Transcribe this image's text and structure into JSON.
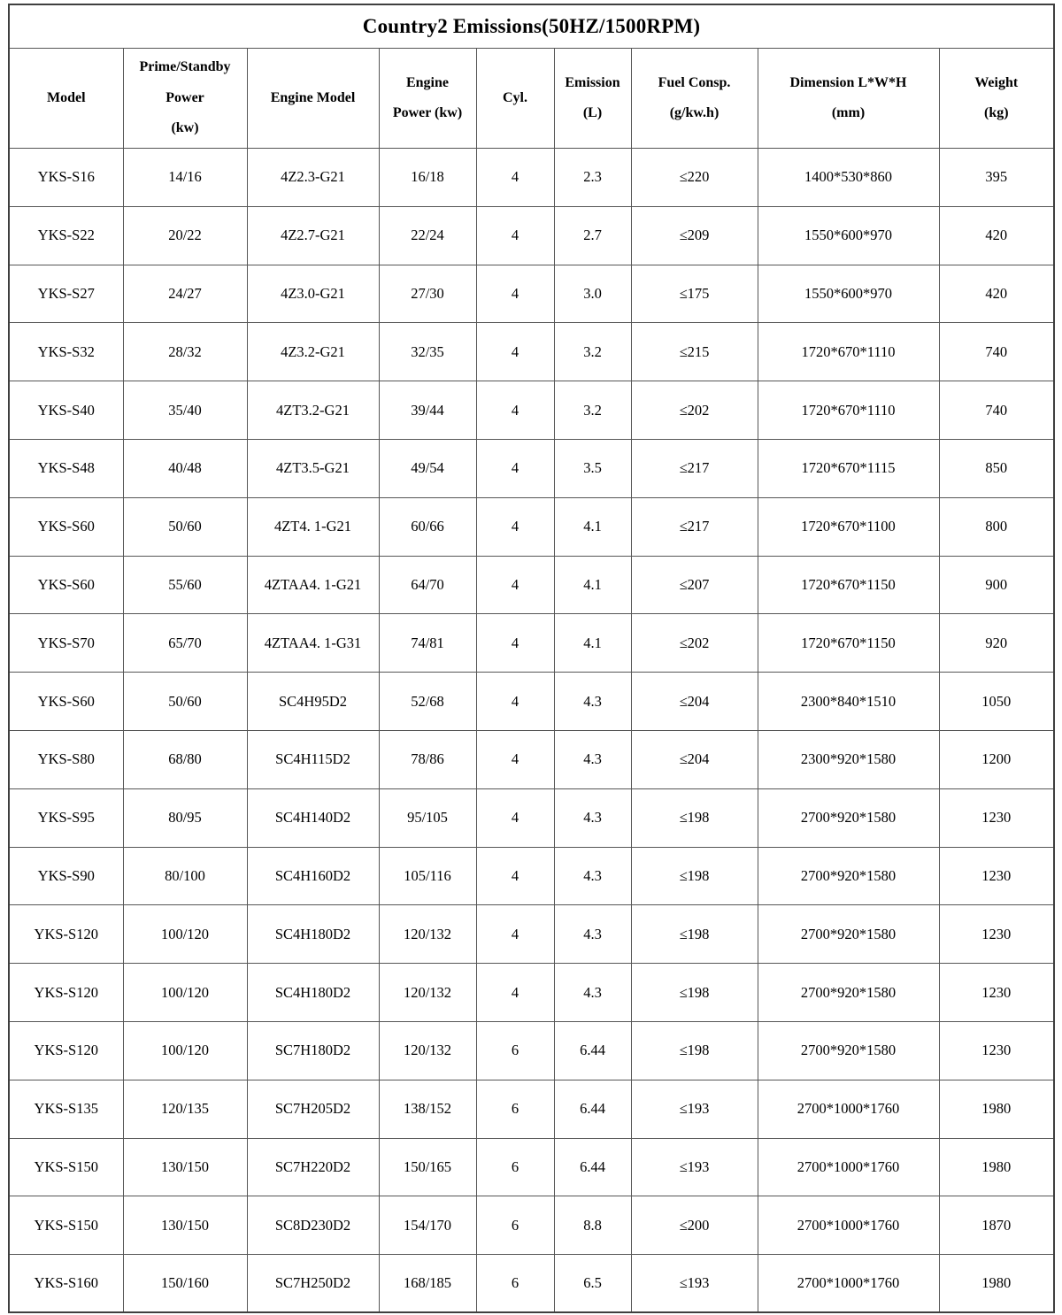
{
  "colors": {
    "background": "#ffffff",
    "text": "#000000",
    "border": "#565656"
  },
  "table": {
    "title": "Country2 Emissions(50HZ/1500RPM)",
    "headers": [
      "Model",
      "Prime/Standby\nPower\n(kw)",
      "Engine Model",
      "Engine\nPower (kw)",
      "Cyl.",
      "Emission\n(L)",
      "Fuel Consp.\n(g/kw.h)",
      "Dimension L*W*H\n(mm)",
      "Weight\n(kg)"
    ],
    "column_keys": [
      "model",
      "prime-standby-power",
      "engine-model",
      "engine-power",
      "cylinders",
      "emission",
      "fuel-consumption",
      "dimension",
      "weight"
    ],
    "rows": [
      [
        "YKS-S16",
        "14/16",
        "4Z2.3-G21",
        "16/18",
        "4",
        "2.3",
        "≤220",
        "1400*530*860",
        "395"
      ],
      [
        "YKS-S22",
        "20/22",
        "4Z2.7-G21",
        "22/24",
        "4",
        "2.7",
        "≤209",
        "1550*600*970",
        "420"
      ],
      [
        "YKS-S27",
        "24/27",
        "4Z3.0-G21",
        "27/30",
        "4",
        "3.0",
        "≤175",
        "1550*600*970",
        "420"
      ],
      [
        "YKS-S32",
        "28/32",
        "4Z3.2-G21",
        "32/35",
        "4",
        "3.2",
        "≤215",
        "1720*670*1110",
        "740"
      ],
      [
        "YKS-S40",
        "35/40",
        "4ZT3.2-G21",
        "39/44",
        "4",
        "3.2",
        "≤202",
        "1720*670*1110",
        "740"
      ],
      [
        "YKS-S48",
        "40/48",
        "4ZT3.5-G21",
        "49/54",
        "4",
        "3.5",
        "≤217",
        "1720*670*1115",
        "850"
      ],
      [
        "YKS-S60",
        "50/60",
        "4ZT4. 1-G21",
        "60/66",
        "4",
        "4.1",
        "≤217",
        "1720*670*1100",
        "800"
      ],
      [
        "YKS-S60",
        "55/60",
        "4ZTAA4. 1-G21",
        "64/70",
        "4",
        "4.1",
        "≤207",
        "1720*670*1150",
        "900"
      ],
      [
        "YKS-S70",
        "65/70",
        "4ZTAA4. 1-G31",
        "74/81",
        "4",
        "4.1",
        "≤202",
        "1720*670*1150",
        "920"
      ],
      [
        "YKS-S60",
        "50/60",
        "SC4H95D2",
        "52/68",
        "4",
        "4.3",
        "≤204",
        "2300*840*1510",
        "1050"
      ],
      [
        "YKS-S80",
        "68/80",
        "SC4H115D2",
        "78/86",
        "4",
        "4.3",
        "≤204",
        "2300*920*1580",
        "1200"
      ],
      [
        "YKS-S95",
        "80/95",
        "SC4H140D2",
        "95/105",
        "4",
        "4.3",
        "≤198",
        "2700*920*1580",
        "1230"
      ],
      [
        "YKS-S90",
        "80/100",
        "SC4H160D2",
        "105/116",
        "4",
        "4.3",
        "≤198",
        "2700*920*1580",
        "1230"
      ],
      [
        "YKS-S120",
        "100/120",
        "SC4H180D2",
        "120/132",
        "4",
        "4.3",
        "≤198",
        "2700*920*1580",
        "1230"
      ],
      [
        "YKS-S120",
        "100/120",
        "SC4H180D2",
        "120/132",
        "4",
        "4.3",
        "≤198",
        "2700*920*1580",
        "1230"
      ],
      [
        "YKS-S120",
        "100/120",
        "SC7H180D2",
        "120/132",
        "6",
        "6.44",
        "≤198",
        "2700*920*1580",
        "1230"
      ],
      [
        "YKS-S135",
        "120/135",
        "SC7H205D2",
        "138/152",
        "6",
        "6.44",
        "≤193",
        "2700*1000*1760",
        "1980"
      ],
      [
        "YKS-S150",
        "130/150",
        "SC7H220D2",
        "150/165",
        "6",
        "6.44",
        "≤193",
        "2700*1000*1760",
        "1980"
      ],
      [
        "YKS-S150",
        "130/150",
        "SC8D230D2",
        "154/170",
        "6",
        "8.8",
        "≤200",
        "2700*1000*1760",
        "1870"
      ],
      [
        "YKS-S160",
        "150/160",
        "SC7H250D2",
        "168/185",
        "6",
        "6.5",
        "≤193",
        "2700*1000*1760",
        "1980"
      ]
    ]
  }
}
